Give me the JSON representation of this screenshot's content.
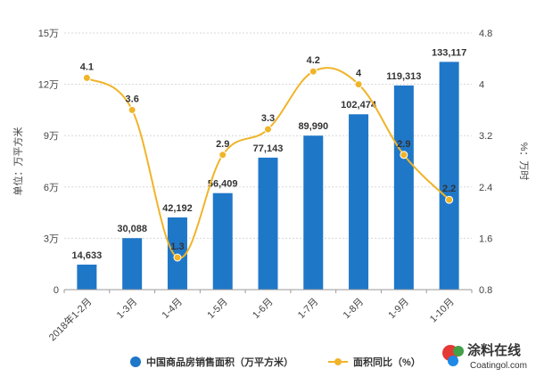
{
  "chart_data": {
    "type": "bar",
    "categories": [
      "2018年1-2月",
      "1-3月",
      "1-4月",
      "1-5月",
      "1-6月",
      "1-7月",
      "1-8月",
      "1-9月",
      "1-10月"
    ],
    "series": [
      {
        "name": "中国商品房销售面积（万平方米）",
        "type": "bar",
        "axis": "left",
        "values": [
          14633,
          30088,
          42192,
          56409,
          77143,
          89990,
          102474,
          119313,
          133117
        ],
        "labels": [
          "14,633",
          "30,088",
          "42,192",
          "56,409",
          "77,143",
          "89,990",
          "102,474",
          "119,313",
          "133,117"
        ],
        "color": "#1f77c8"
      },
      {
        "name": "面积同比（%）",
        "type": "line",
        "axis": "right",
        "values": [
          4.1,
          3.6,
          1.3,
          2.9,
          3.3,
          4.2,
          4.0,
          2.9,
          2.2
        ],
        "labels": [
          "4.1",
          "3.6",
          "1.3",
          "2.9",
          "3.3",
          "4.2",
          "4",
          "2.9",
          "2.2"
        ],
        "color": "#f0b429"
      }
    ],
    "ylabel": "单位：万平方米",
    "y2label": "%：万时",
    "ylim": [
      0,
      150000
    ],
    "y_ticks": [
      0,
      30000,
      60000,
      90000,
      120000,
      150000
    ],
    "y_tick_labels": [
      "0",
      "3万",
      "6万",
      "9万",
      "12万",
      "15万"
    ],
    "y2lim": [
      0.8,
      4.8
    ],
    "y2_ticks": [
      0.8,
      1.6,
      2.4,
      3.2,
      4,
      4.8
    ],
    "y2_tick_labels": [
      "0.8",
      "1.6",
      "2.4",
      "3.2",
      "4",
      "4.8"
    ],
    "grid": true,
    "legend_position": "bottom"
  },
  "watermark": {
    "brand": "涂料在线",
    "site": "Coatingol.com"
  }
}
